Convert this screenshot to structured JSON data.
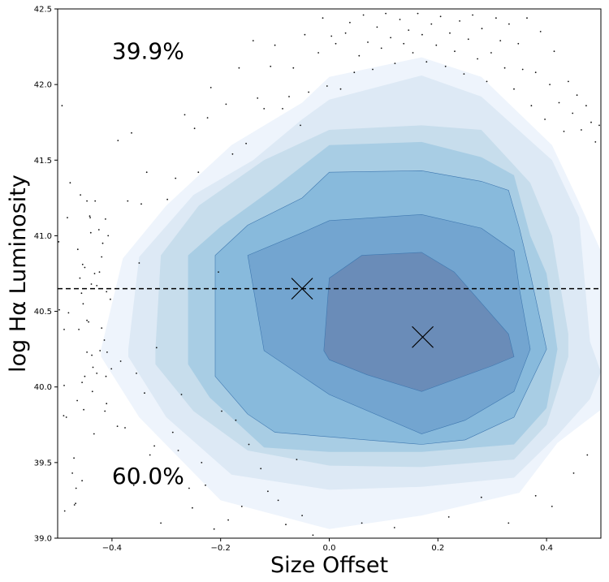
{
  "chart_data": {
    "type": "contour",
    "xlabel": "Size Offset",
    "ylabel": "log Hα Luminosity",
    "xlim": [
      -0.5,
      0.5
    ],
    "ylim": [
      39.0,
      42.5
    ],
    "xticks": [
      -0.4,
      -0.2,
      0.0,
      0.2,
      0.4
    ],
    "xtick_labels": [
      "−0.4",
      "−0.2",
      "0.0",
      "0.2",
      "0.4"
    ],
    "yticks": [
      39.0,
      39.5,
      40.0,
      40.5,
      41.0,
      41.5,
      42.0,
      42.5
    ],
    "ytick_labels": [
      "39.0",
      "39.5",
      "40.0",
      "40.5",
      "41.0",
      "41.5",
      "42.0",
      "42.5"
    ],
    "grid": false,
    "hline_y": 40.65,
    "markers": [
      {
        "x": -0.05,
        "y": 40.65
      },
      {
        "x": 0.172,
        "y": 40.33
      }
    ],
    "annotations": [
      {
        "text": "39.9%",
        "x": -0.4,
        "y": 42.17
      },
      {
        "text": "60.0%",
        "x": -0.4,
        "y": 39.36
      }
    ],
    "colors": [
      "#eef4fc",
      "#dde9f5",
      "#c7ddec",
      "#a8cde4",
      "#88badc",
      "#73a5d0",
      "#6a8cb8"
    ],
    "contours": [
      [
        [
          -0.42,
          40.25
        ],
        [
          -0.38,
          40.85
        ],
        [
          -0.3,
          41.2
        ],
        [
          -0.18,
          41.6
        ],
        [
          -0.05,
          41.88
        ],
        [
          0.0,
          42.05
        ],
        [
          0.17,
          42.18
        ],
        [
          0.28,
          42.05
        ],
        [
          0.41,
          41.6
        ],
        [
          0.46,
          41.22
        ],
        [
          0.5,
          40.9
        ],
        [
          0.5,
          39.85
        ],
        [
          0.42,
          39.63
        ],
        [
          0.35,
          39.3
        ],
        [
          0.17,
          39.15
        ],
        [
          0.0,
          39.06
        ],
        [
          -0.2,
          39.25
        ],
        [
          -0.35,
          39.8
        ],
        [
          -0.42,
          40.2
        ]
      ],
      [
        [
          -0.37,
          40.25
        ],
        [
          -0.35,
          40.86
        ],
        [
          -0.25,
          41.27
        ],
        [
          -0.14,
          41.5
        ],
        [
          -0.05,
          41.77
        ],
        [
          0.0,
          41.9
        ],
        [
          0.17,
          42.06
        ],
        [
          0.28,
          41.92
        ],
        [
          0.41,
          41.5
        ],
        [
          0.46,
          41.12
        ],
        [
          0.48,
          40.3
        ],
        [
          0.5,
          40.1
        ],
        [
          0.48,
          39.92
        ],
        [
          0.42,
          39.68
        ],
        [
          0.34,
          39.4
        ],
        [
          0.17,
          39.34
        ],
        [
          0.0,
          39.32
        ],
        [
          -0.18,
          39.42
        ],
        [
          -0.3,
          39.8
        ],
        [
          -0.37,
          40.2
        ]
      ],
      [
        [
          -0.32,
          40.25
        ],
        [
          -0.31,
          40.87
        ],
        [
          -0.24,
          41.2
        ],
        [
          -0.12,
          41.5
        ],
        [
          0.0,
          41.7
        ],
        [
          0.17,
          41.73
        ],
        [
          0.28,
          41.7
        ],
        [
          0.37,
          41.35
        ],
        [
          0.41,
          41.0
        ],
        [
          0.44,
          40.35
        ],
        [
          0.44,
          40.2
        ],
        [
          0.4,
          39.75
        ],
        [
          0.34,
          39.52
        ],
        [
          0.17,
          39.47
        ],
        [
          0.0,
          39.48
        ],
        [
          -0.15,
          39.58
        ],
        [
          -0.25,
          39.84
        ],
        [
          -0.32,
          40.15
        ]
      ],
      [
        [
          -0.26,
          40.25
        ],
        [
          -0.26,
          40.87
        ],
        [
          -0.2,
          41.06
        ],
        [
          -0.1,
          41.32
        ],
        [
          0.0,
          41.6
        ],
        [
          0.17,
          41.62
        ],
        [
          0.28,
          41.52
        ],
        [
          0.34,
          41.4
        ],
        [
          0.37,
          41.0
        ],
        [
          0.4,
          40.75
        ],
        [
          0.42,
          40.25
        ],
        [
          0.4,
          39.86
        ],
        [
          0.34,
          39.62
        ],
        [
          0.17,
          39.57
        ],
        [
          0.0,
          39.57
        ],
        [
          -0.12,
          39.6
        ],
        [
          -0.22,
          39.93
        ],
        [
          -0.26,
          40.15
        ]
      ],
      [
        [
          -0.21,
          40.25
        ],
        [
          -0.21,
          40.87
        ],
        [
          -0.15,
          41.07
        ],
        [
          -0.05,
          41.25
        ],
        [
          0.0,
          41.42
        ],
        [
          0.17,
          41.43
        ],
        [
          0.28,
          41.36
        ],
        [
          0.33,
          41.3
        ],
        [
          0.35,
          41.05
        ],
        [
          0.37,
          40.75
        ],
        [
          0.4,
          40.25
        ],
        [
          0.34,
          39.8
        ],
        [
          0.25,
          39.65
        ],
        [
          0.17,
          39.62
        ],
        [
          0.0,
          39.67
        ],
        [
          -0.1,
          39.7
        ],
        [
          -0.15,
          39.82
        ],
        [
          -0.21,
          40.07
        ]
      ],
      [
        [
          -0.15,
          40.87
        ],
        [
          -0.05,
          41.02
        ],
        [
          0.0,
          41.1
        ],
        [
          0.17,
          41.14
        ],
        [
          0.28,
          41.05
        ],
        [
          0.34,
          40.9
        ],
        [
          0.35,
          40.65
        ],
        [
          0.37,
          40.25
        ],
        [
          0.34,
          39.97
        ],
        [
          0.25,
          39.78
        ],
        [
          0.17,
          39.69
        ],
        [
          0.0,
          39.95
        ],
        [
          -0.12,
          40.24
        ]
      ],
      [
        [
          -0.01,
          40.24
        ],
        [
          0.0,
          40.72
        ],
        [
          0.06,
          40.87
        ],
        [
          0.17,
          40.89
        ],
        [
          0.23,
          40.76
        ],
        [
          0.33,
          40.35
        ],
        [
          0.34,
          40.2
        ],
        [
          0.3,
          40.14
        ],
        [
          0.17,
          39.97
        ],
        [
          0.07,
          40.08
        ],
        [
          0.0,
          40.18
        ]
      ]
    ],
    "scatter": [
      [
        -0.498,
        40.96
      ],
      [
        -0.497,
        40.51
      ],
      [
        -0.492,
        41.86
      ],
      [
        -0.489,
        39.81
      ],
      [
        -0.488,
        40.01
      ],
      [
        -0.488,
        40.38
      ],
      [
        -0.487,
        39.18
      ],
      [
        -0.484,
        39.8
      ],
      [
        -0.482,
        41.12
      ],
      [
        -0.48,
        40.49
      ],
      [
        -0.477,
        41.35
      ],
      [
        -0.473,
        39.43
      ],
      [
        -0.47,
        39.53
      ],
      [
        -0.469,
        39.22
      ],
      [
        -0.467,
        39.23
      ],
      [
        -0.466,
        39.33
      ],
      [
        -0.464,
        39.91
      ],
      [
        -0.463,
        40.91
      ],
      [
        -0.461,
        40.38
      ],
      [
        -0.459,
        40.72
      ],
      [
        -0.458,
        41.27
      ],
      [
        -0.456,
        40.62
      ],
      [
        -0.455,
        40.03
      ],
      [
        -0.455,
        39.38
      ],
      [
        -0.454,
        40.81
      ],
      [
        -0.453,
        40.55
      ],
      [
        -0.452,
        39.85
      ],
      [
        -0.45,
        40.79
      ],
      [
        -0.45,
        40.07
      ],
      [
        -0.446,
        40.23
      ],
      [
        -0.446,
        41.23
      ],
      [
        -0.446,
        40.44
      ],
      [
        -0.443,
        40.43
      ],
      [
        -0.441,
        41.13
      ],
      [
        -0.44,
        41.12
      ],
      [
        -0.439,
        41.02
      ],
      [
        -0.438,
        40.68
      ],
      [
        -0.437,
        40.21
      ],
      [
        -0.436,
        39.97
      ],
      [
        -0.435,
        40.13
      ],
      [
        -0.433,
        39.69
      ],
      [
        -0.432,
        40.75
      ],
      [
        -0.431,
        41.23
      ],
      [
        -0.428,
        40.67
      ],
      [
        -0.428,
        40.09
      ],
      [
        -0.424,
        41.04
      ],
      [
        -0.423,
        40.76
      ],
      [
        -0.422,
        40.24
      ],
      [
        -0.419,
        40.39
      ],
      [
        -0.419,
        40.86
      ],
      [
        -0.417,
        40.95
      ],
      [
        -0.414,
        40.31
      ],
      [
        -0.413,
        39.84
      ],
      [
        -0.412,
        41.11
      ],
      [
        -0.411,
        40.07
      ],
      [
        -0.41,
        40.63
      ],
      [
        -0.41,
        39.89
      ],
      [
        -0.409,
        40.23
      ],
      [
        -0.407,
        41.0
      ],
      [
        -0.403,
        40.58
      ],
      [
        -0.401,
        40.12
      ],
      [
        -0.39,
        39.74
      ],
      [
        -0.389,
        41.63
      ],
      [
        -0.386,
        39.46
      ],
      [
        -0.384,
        40.17
      ],
      [
        -0.376,
        39.73
      ],
      [
        -0.371,
        41.23
      ],
      [
        -0.364,
        41.68
      ],
      [
        -0.36,
        39.35
      ],
      [
        -0.355,
        40.09
      ],
      [
        -0.35,
        40.82
      ],
      [
        -0.346,
        41.21
      ],
      [
        -0.34,
        39.96
      ],
      [
        -0.336,
        41.42
      ],
      [
        -0.33,
        39.55
      ],
      [
        -0.322,
        39.61
      ],
      [
        -0.318,
        40.26
      ],
      [
        -0.31,
        39.1
      ],
      [
        -0.298,
        41.24
      ],
      [
        -0.288,
        39.7
      ],
      [
        -0.283,
        41.38
      ],
      [
        -0.278,
        39.58
      ],
      [
        -0.272,
        39.95
      ],
      [
        -0.266,
        41.8
      ],
      [
        -0.258,
        39.33
      ],
      [
        -0.252,
        39.2
      ],
      [
        -0.248,
        41.71
      ],
      [
        -0.241,
        41.42
      ],
      [
        -0.235,
        39.5
      ],
      [
        -0.228,
        39.35
      ],
      [
        -0.224,
        41.78
      ],
      [
        -0.218,
        41.98
      ],
      [
        -0.212,
        39.06
      ],
      [
        -0.204,
        40.76
      ],
      [
        -0.198,
        39.84
      ],
      [
        -0.19,
        41.87
      ],
      [
        -0.186,
        39.12
      ],
      [
        -0.178,
        41.54
      ],
      [
        -0.172,
        39.78
      ],
      [
        -0.166,
        42.11
      ],
      [
        -0.161,
        39.21
      ],
      [
        -0.153,
        41.61
      ],
      [
        -0.148,
        39.62
      ],
      [
        -0.14,
        42.29
      ],
      [
        -0.132,
        41.91
      ],
      [
        -0.126,
        39.46
      ],
      [
        -0.12,
        41.84
      ],
      [
        -0.113,
        39.31
      ],
      [
        -0.108,
        42.12
      ],
      [
        -0.1,
        42.26
      ],
      [
        -0.094,
        39.25
      ],
      [
        -0.086,
        41.84
      ],
      [
        -0.08,
        39.09
      ],
      [
        -0.074,
        41.92
      ],
      [
        -0.066,
        42.11
      ],
      [
        -0.06,
        39.52
      ],
      [
        -0.053,
        41.73
      ],
      [
        -0.045,
        42.33
      ],
      [
        -0.038,
        41.95
      ],
      [
        -0.03,
        39.02
      ],
      [
        -0.02,
        42.21
      ],
      [
        -0.012,
        42.44
      ],
      [
        -0.004,
        41.99
      ],
      [
        0.004,
        42.32
      ],
      [
        0.012,
        42.27
      ],
      [
        0.021,
        41.97
      ],
      [
        0.03,
        42.34
      ],
      [
        0.038,
        42.41
      ],
      [
        0.046,
        42.08
      ],
      [
        0.055,
        42.19
      ],
      [
        0.063,
        42.46
      ],
      [
        0.071,
        42.28
      ],
      [
        0.08,
        42.1
      ],
      [
        0.088,
        42.38
      ],
      [
        0.096,
        42.24
      ],
      [
        0.104,
        42.47
      ],
      [
        0.113,
        42.31
      ],
      [
        0.121,
        42.14
      ],
      [
        0.13,
        42.43
      ],
      [
        0.137,
        42.27
      ],
      [
        0.146,
        42.36
      ],
      [
        0.154,
        42.21
      ],
      [
        0.163,
        42.47
      ],
      [
        0.171,
        42.33
      ],
      [
        0.179,
        42.15
      ],
      [
        0.188,
        42.4
      ],
      [
        0.197,
        42.26
      ],
      [
        0.205,
        42.45
      ],
      [
        0.214,
        42.12
      ],
      [
        0.222,
        42.34
      ],
      [
        0.231,
        42.22
      ],
      [
        0.24,
        42.42
      ],
      [
        0.248,
        42.07
      ],
      [
        0.256,
        42.3
      ],
      [
        0.264,
        42.46
      ],
      [
        0.273,
        42.17
      ],
      [
        0.281,
        42.37
      ],
      [
        0.29,
        42.02
      ],
      [
        0.298,
        42.21
      ],
      [
        0.307,
        42.44
      ],
      [
        0.315,
        42.29
      ],
      [
        0.323,
        42.11
      ],
      [
        0.331,
        42.4
      ],
      [
        0.34,
        41.97
      ],
      [
        0.348,
        42.27
      ],
      [
        0.356,
        42.1
      ],
      [
        0.364,
        42.44
      ],
      [
        0.372,
        41.86
      ],
      [
        0.38,
        42.08
      ],
      [
        0.389,
        42.35
      ],
      [
        0.397,
        41.77
      ],
      [
        0.406,
        42.0
      ],
      [
        0.414,
        42.22
      ],
      [
        0.423,
        41.88
      ],
      [
        0.432,
        41.69
      ],
      [
        0.44,
        42.02
      ],
      [
        0.448,
        41.81
      ],
      [
        0.456,
        41.93
      ],
      [
        0.464,
        41.7
      ],
      [
        0.473,
        41.86
      ],
      [
        0.482,
        41.75
      ],
      [
        0.49,
        41.62
      ],
      [
        0.497,
        41.73
      ],
      [
        0.45,
        39.43
      ],
      [
        0.475,
        39.55
      ],
      [
        0.41,
        39.21
      ],
      [
        0.38,
        39.28
      ],
      [
        0.33,
        39.1
      ],
      [
        0.28,
        39.27
      ],
      [
        0.22,
        39.14
      ],
      [
        0.12,
        39.07
      ],
      [
        0.06,
        39.1
      ],
      [
        -0.05,
        39.15
      ]
    ]
  }
}
